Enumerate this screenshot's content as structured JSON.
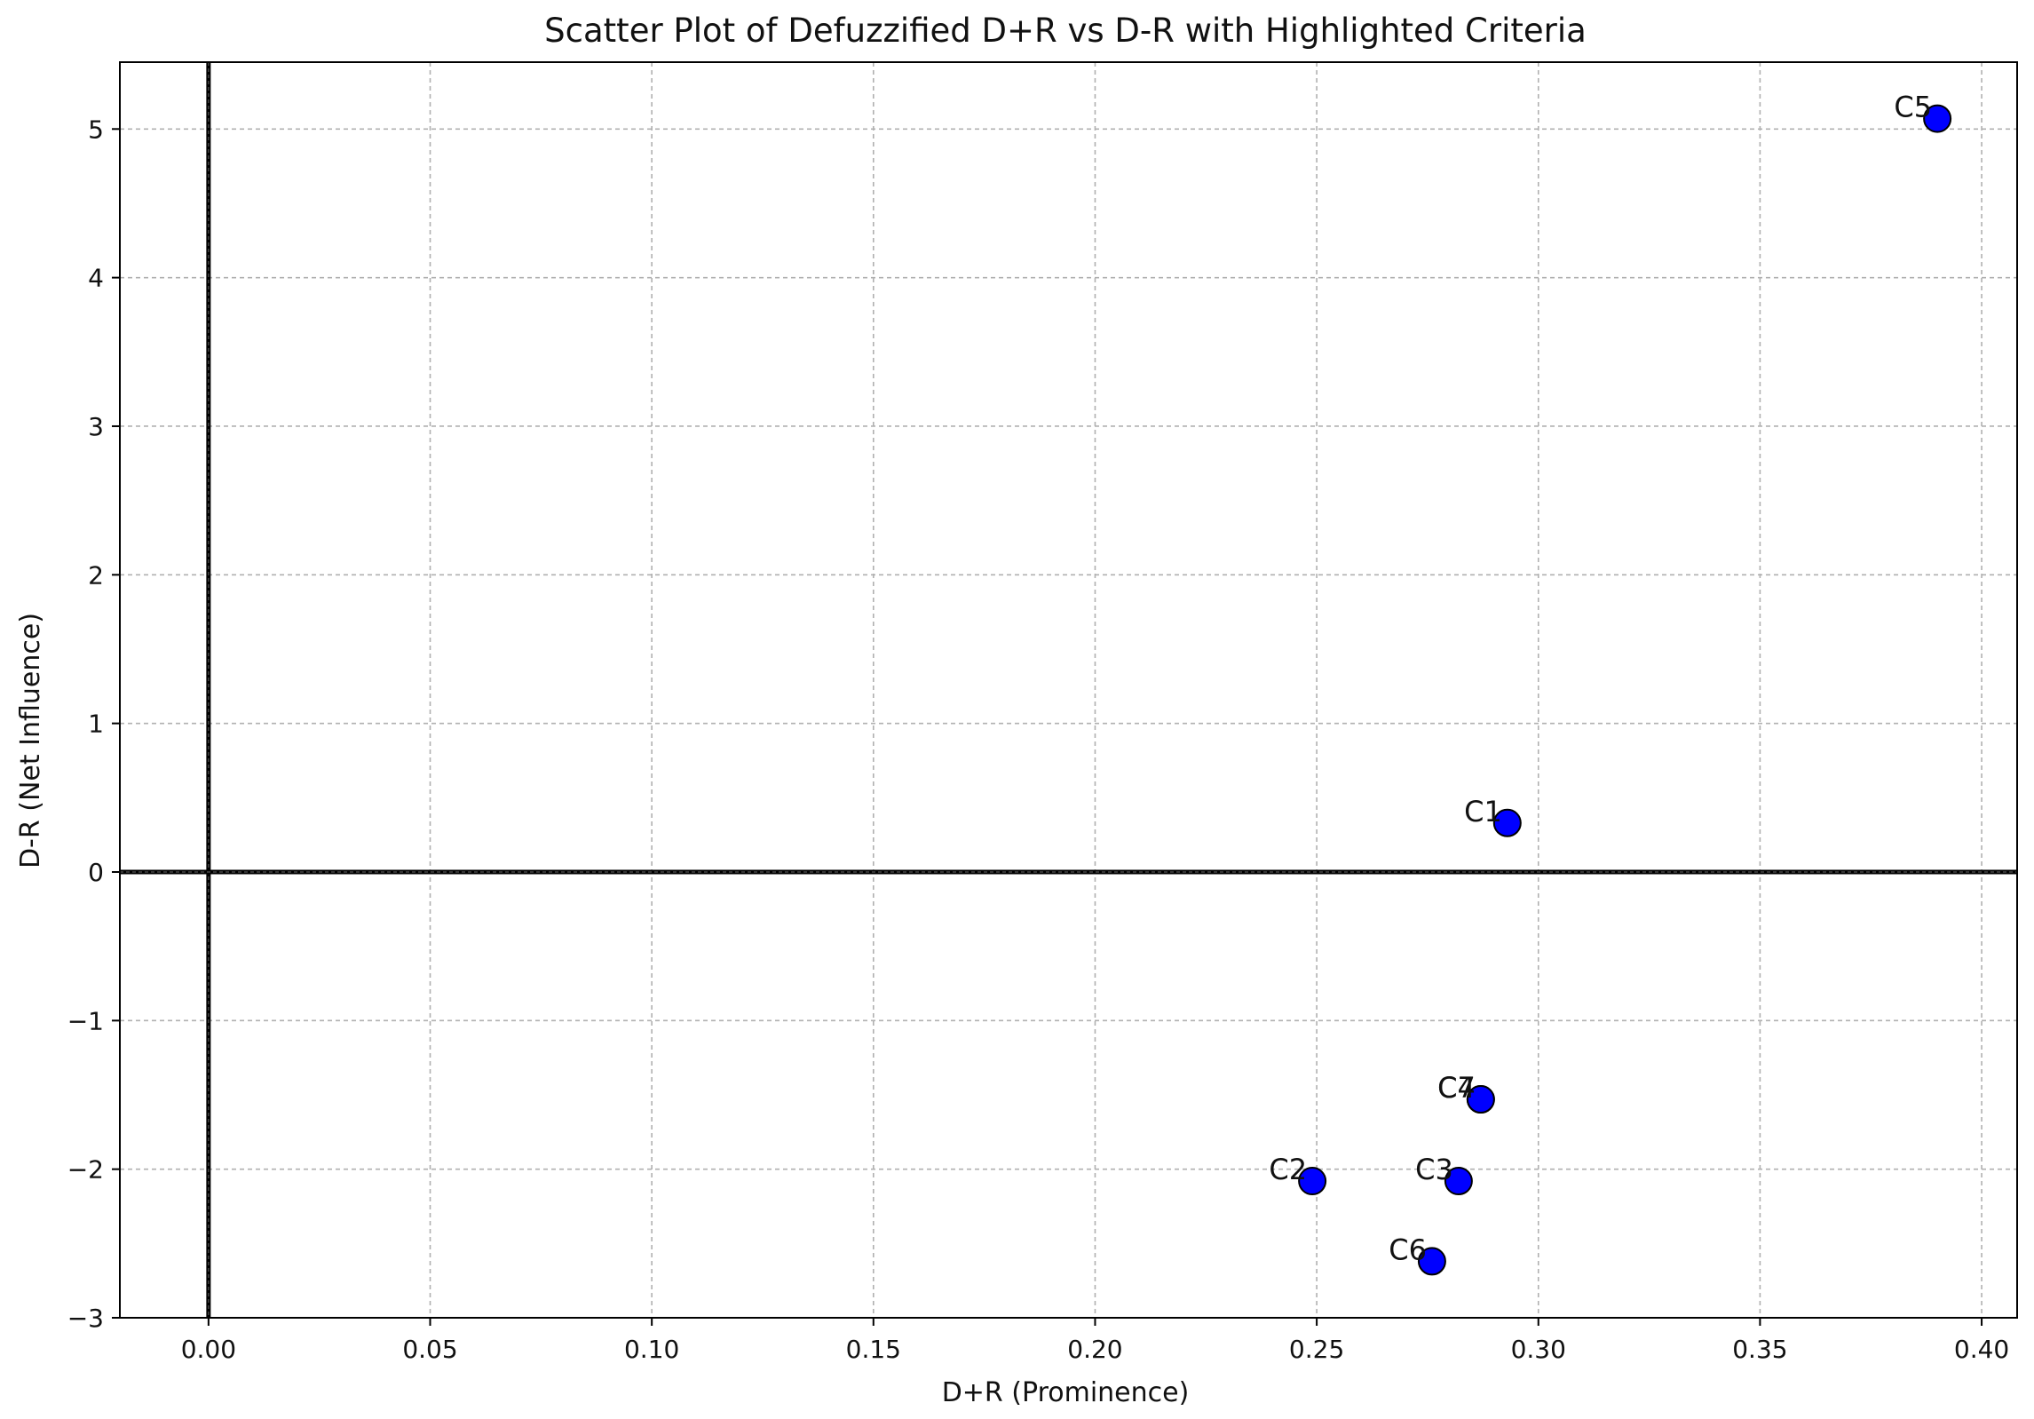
{
  "chart_data": {
    "type": "scatter",
    "title": "Scatter Plot of Defuzzified D+R vs D-R with Highlighted Criteria",
    "xlabel": "D+R (Prominence)",
    "ylabel": "D-R (Net Influence)",
    "xlim": [
      -0.02,
      0.408
    ],
    "ylim": [
      -3.0,
      5.45
    ],
    "x_ticks": [
      0.0,
      0.05,
      0.1,
      0.15,
      0.2,
      0.25,
      0.3,
      0.35,
      0.4
    ],
    "x_tick_labels": [
      "0.00",
      "0.05",
      "0.10",
      "0.15",
      "0.20",
      "0.25",
      "0.30",
      "0.35",
      "0.40"
    ],
    "y_ticks": [
      -3,
      -2,
      -1,
      0,
      1,
      2,
      3,
      4,
      5
    ],
    "y_tick_labels": [
      "−3",
      "−2",
      "−1",
      "0",
      "1",
      "2",
      "3",
      "4",
      "5"
    ],
    "grid": true,
    "reference_lines": {
      "x": 0,
      "y": 0
    },
    "marker_color": "#0000ff",
    "marker_edge_color": "#000000",
    "points": [
      {
        "label": "C1",
        "x": 0.293,
        "y": 0.33
      },
      {
        "label": "C2",
        "x": 0.249,
        "y": -2.08
      },
      {
        "label": "C3",
        "x": 0.282,
        "y": -2.08
      },
      {
        "label": "C4",
        "x": 0.287,
        "y": -1.53
      },
      {
        "label": "C5",
        "x": 0.39,
        "y": 5.07
      },
      {
        "label": "C6",
        "x": 0.276,
        "y": -2.62
      },
      {
        "label": "C7",
        "x": 0.287,
        "y": -1.53
      }
    ]
  }
}
